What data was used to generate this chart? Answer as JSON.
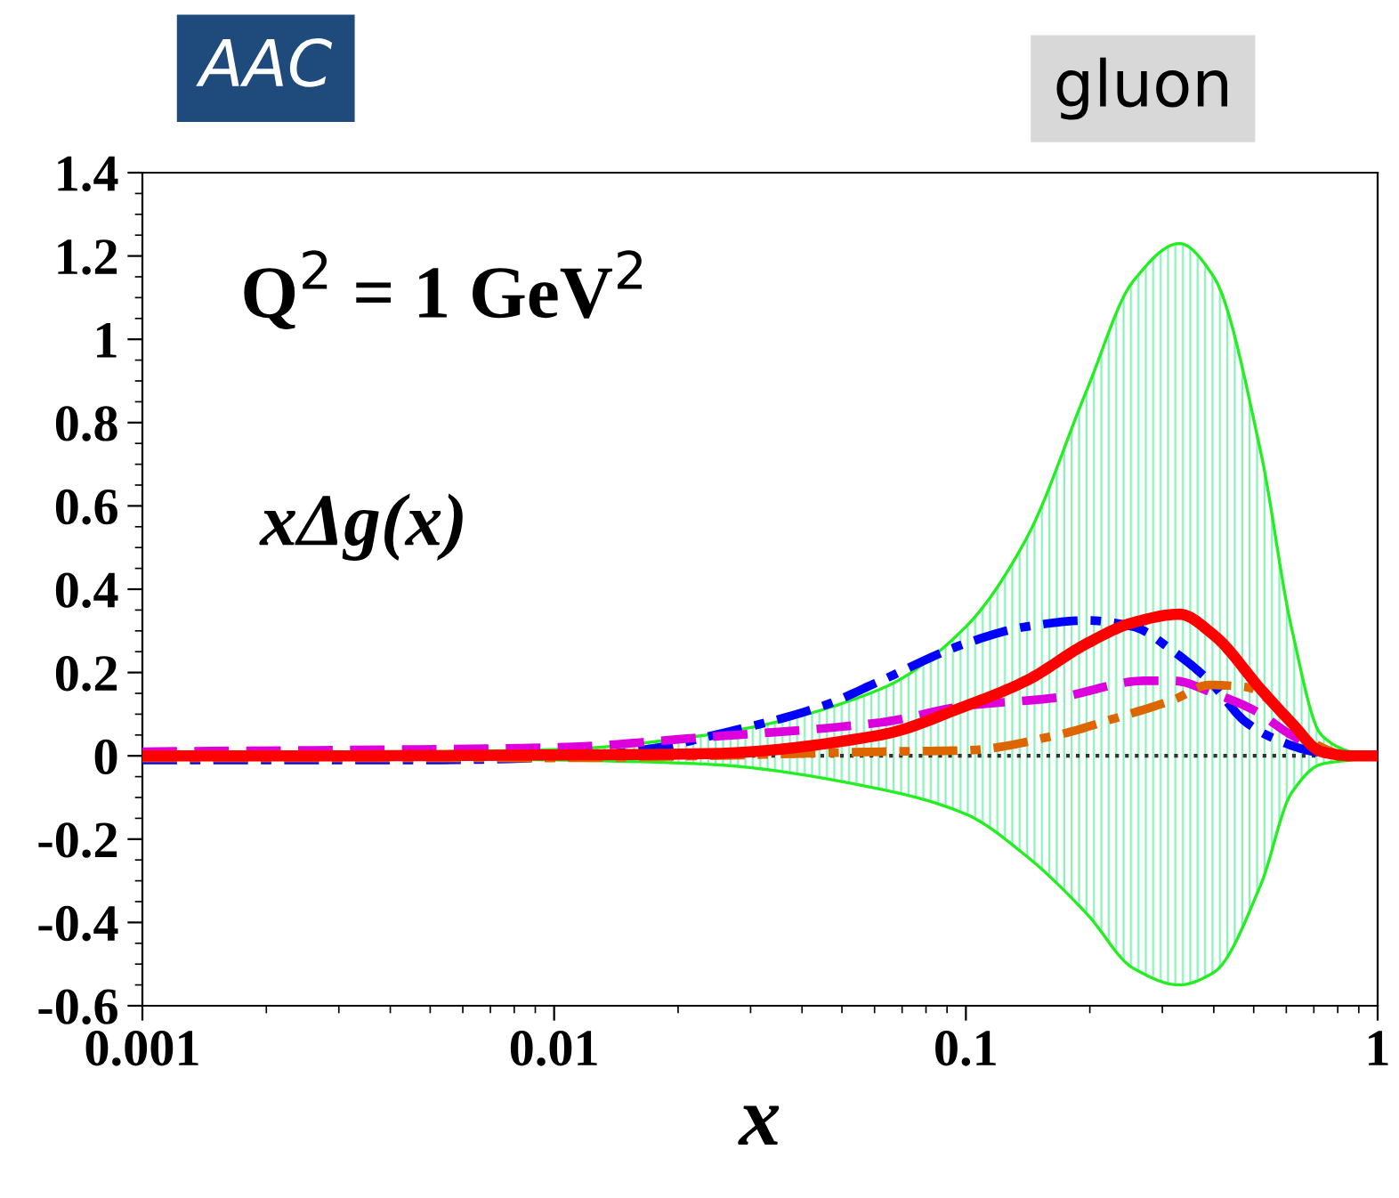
{
  "chart_data": {
    "type": "line",
    "xlabel": "x",
    "log": "x",
    "grid": false,
    "legend": false,
    "xlim": [
      0.001,
      1
    ],
    "xticks": [
      0.001,
      0.01,
      0.1,
      1
    ],
    "ylim": [
      -0.6,
      1.4
    ],
    "yticks": [
      -0.6,
      -0.4,
      -0.2,
      0,
      0.2,
      0.4,
      0.6,
      0.8,
      1,
      1.2,
      1.4
    ],
    "annotations": [
      "AAC",
      "gluon",
      "Q$^{2}$ = 1 GeV$^{2}$",
      "xΔg(x)"
    ],
    "ref_lines": [
      {
        "axis": "y",
        "value": 0,
        "color": "#333333",
        "line_style": "dotted"
      }
    ],
    "series": [
      {
        "color": "#ff0000",
        "line_style": "solid",
        "x": [
          0.001,
          0.003,
          0.01,
          0.0234,
          0.062,
          0.1,
          0.14,
          0.197,
          0.255,
          0.33,
          0.4,
          0.52,
          0.617,
          0.73,
          0.86,
          1
        ],
        "values": [
          0,
          0,
          0.002,
          0.005,
          0.05,
          0.12,
          0.18,
          0.27,
          0.32,
          0.34,
          0.29,
          0.16,
          0.08,
          0.01,
          0,
          0
        ],
        "upper": [
          0.005,
          0.008,
          0.015,
          0.05,
          0.16,
          0.31,
          0.52,
          0.88,
          1.14,
          1.23,
          1.15,
          0.73,
          0.31,
          0.05,
          0.01,
          0
        ],
        "lower": [
          -0.003,
          -0.005,
          -0.01,
          -0.02,
          -0.08,
          -0.14,
          -0.24,
          -0.38,
          -0.51,
          -0.55,
          -0.52,
          -0.31,
          -0.09,
          -0.02,
          -0.01,
          0
        ]
      },
      {
        "color": "#0000ff",
        "line_style": "dashdot",
        "x": [
          0.001,
          0.005,
          0.012,
          0.018,
          0.0234,
          0.045,
          0.062,
          0.1,
          0.14,
          0.197,
          0.255,
          0.32,
          0.39,
          0.48,
          0.58,
          0.7,
          0.86,
          1
        ],
        "values": [
          -0.01,
          -0.01,
          0,
          0.02,
          0.045,
          0.12,
          0.18,
          0.27,
          0.31,
          0.325,
          0.31,
          0.25,
          0.18,
          0.08,
          0.035,
          0.01,
          0,
          0
        ]
      },
      {
        "color": "#dd00dd",
        "line_style": "dashed",
        "x": [
          0.001,
          0.01,
          0.0234,
          0.062,
          0.1,
          0.167,
          0.27,
          0.32,
          0.4,
          0.5,
          0.617,
          0.75,
          0.86,
          1
        ],
        "values": [
          0.01,
          0.02,
          0.045,
          0.08,
          0.12,
          0.14,
          0.18,
          0.18,
          0.15,
          0.11,
          0.05,
          0.01,
          0,
          0
        ]
      },
      {
        "color": "#dd6600",
        "line_style": "dashdot",
        "x": [
          0.001,
          0.01,
          0.0234,
          0.062,
          0.1,
          0.167,
          0.23,
          0.32,
          0.39,
          0.48,
          0.58,
          0.7,
          0.86,
          1
        ],
        "values": [
          -0.005,
          -0.005,
          0,
          0.01,
          0.013,
          0.05,
          0.09,
          0.135,
          0.17,
          0.165,
          0.11,
          0.03,
          0,
          0
        ]
      }
    ]
  }
}
